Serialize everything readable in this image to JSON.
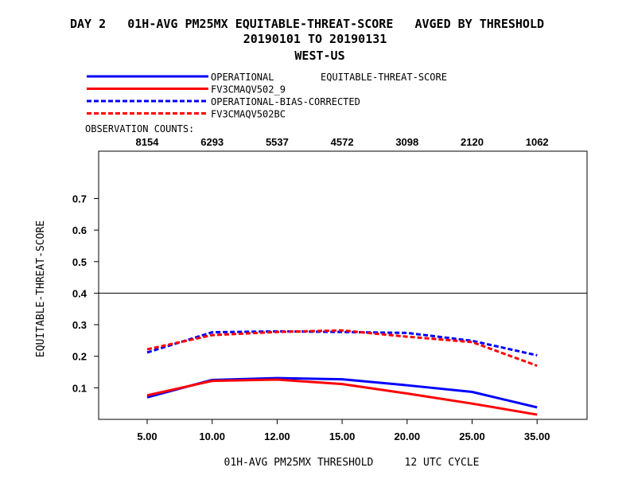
{
  "chart_data": {
    "type": "line",
    "title_line1": "DAY 2   01H-AVG PM25MX EQUITABLE-THREAT-SCORE   AVGED BY THRESHOLD",
    "title_line2": "20190101 TO 20190131",
    "title_line3": "WEST-US",
    "legend_heading": "EQUITABLE-THREAT-SCORE",
    "obs_heading": "OBSERVATION COUNTS:",
    "obs_counts": [
      "8154",
      "6293",
      "5537",
      "4572",
      "3098",
      "2120",
      "1062"
    ],
    "categories": [
      "5.00",
      "10.00",
      "12.00",
      "15.00",
      "20.00",
      "25.00",
      "35.00"
    ],
    "xlabel": "01H-AVG PM25MX THRESHOLD     12 UTC CYCLE",
    "ylabel": "EQUITABLE-THREAT-SCORE",
    "ylim": [
      0,
      0.85
    ],
    "yticks": [
      "0.1",
      "0.2",
      "0.3",
      "0.4",
      "0.5",
      "0.6",
      "0.7"
    ],
    "reference_line": 0.4,
    "series": [
      {
        "name": "OPERATIONAL",
        "color": "#0000ff",
        "dashed": false,
        "values": [
          0.07,
          0.125,
          0.131,
          0.127,
          0.108,
          0.087,
          0.038
        ]
      },
      {
        "name": "FV3CMAQV502_9",
        "color": "#ff0000",
        "dashed": false,
        "values": [
          0.076,
          0.122,
          0.126,
          0.112,
          0.082,
          0.05,
          0.015
        ]
      },
      {
        "name": "OPERATIONAL-BIAS-CORRECTED",
        "color": "#0000ff",
        "dashed": true,
        "values": [
          0.212,
          0.276,
          0.279,
          0.277,
          0.274,
          0.249,
          0.203
        ]
      },
      {
        "name": "FV3CMAQV502BC",
        "color": "#ff0000",
        "dashed": true,
        "values": [
          0.222,
          0.267,
          0.277,
          0.282,
          0.262,
          0.245,
          0.17
        ]
      }
    ]
  }
}
